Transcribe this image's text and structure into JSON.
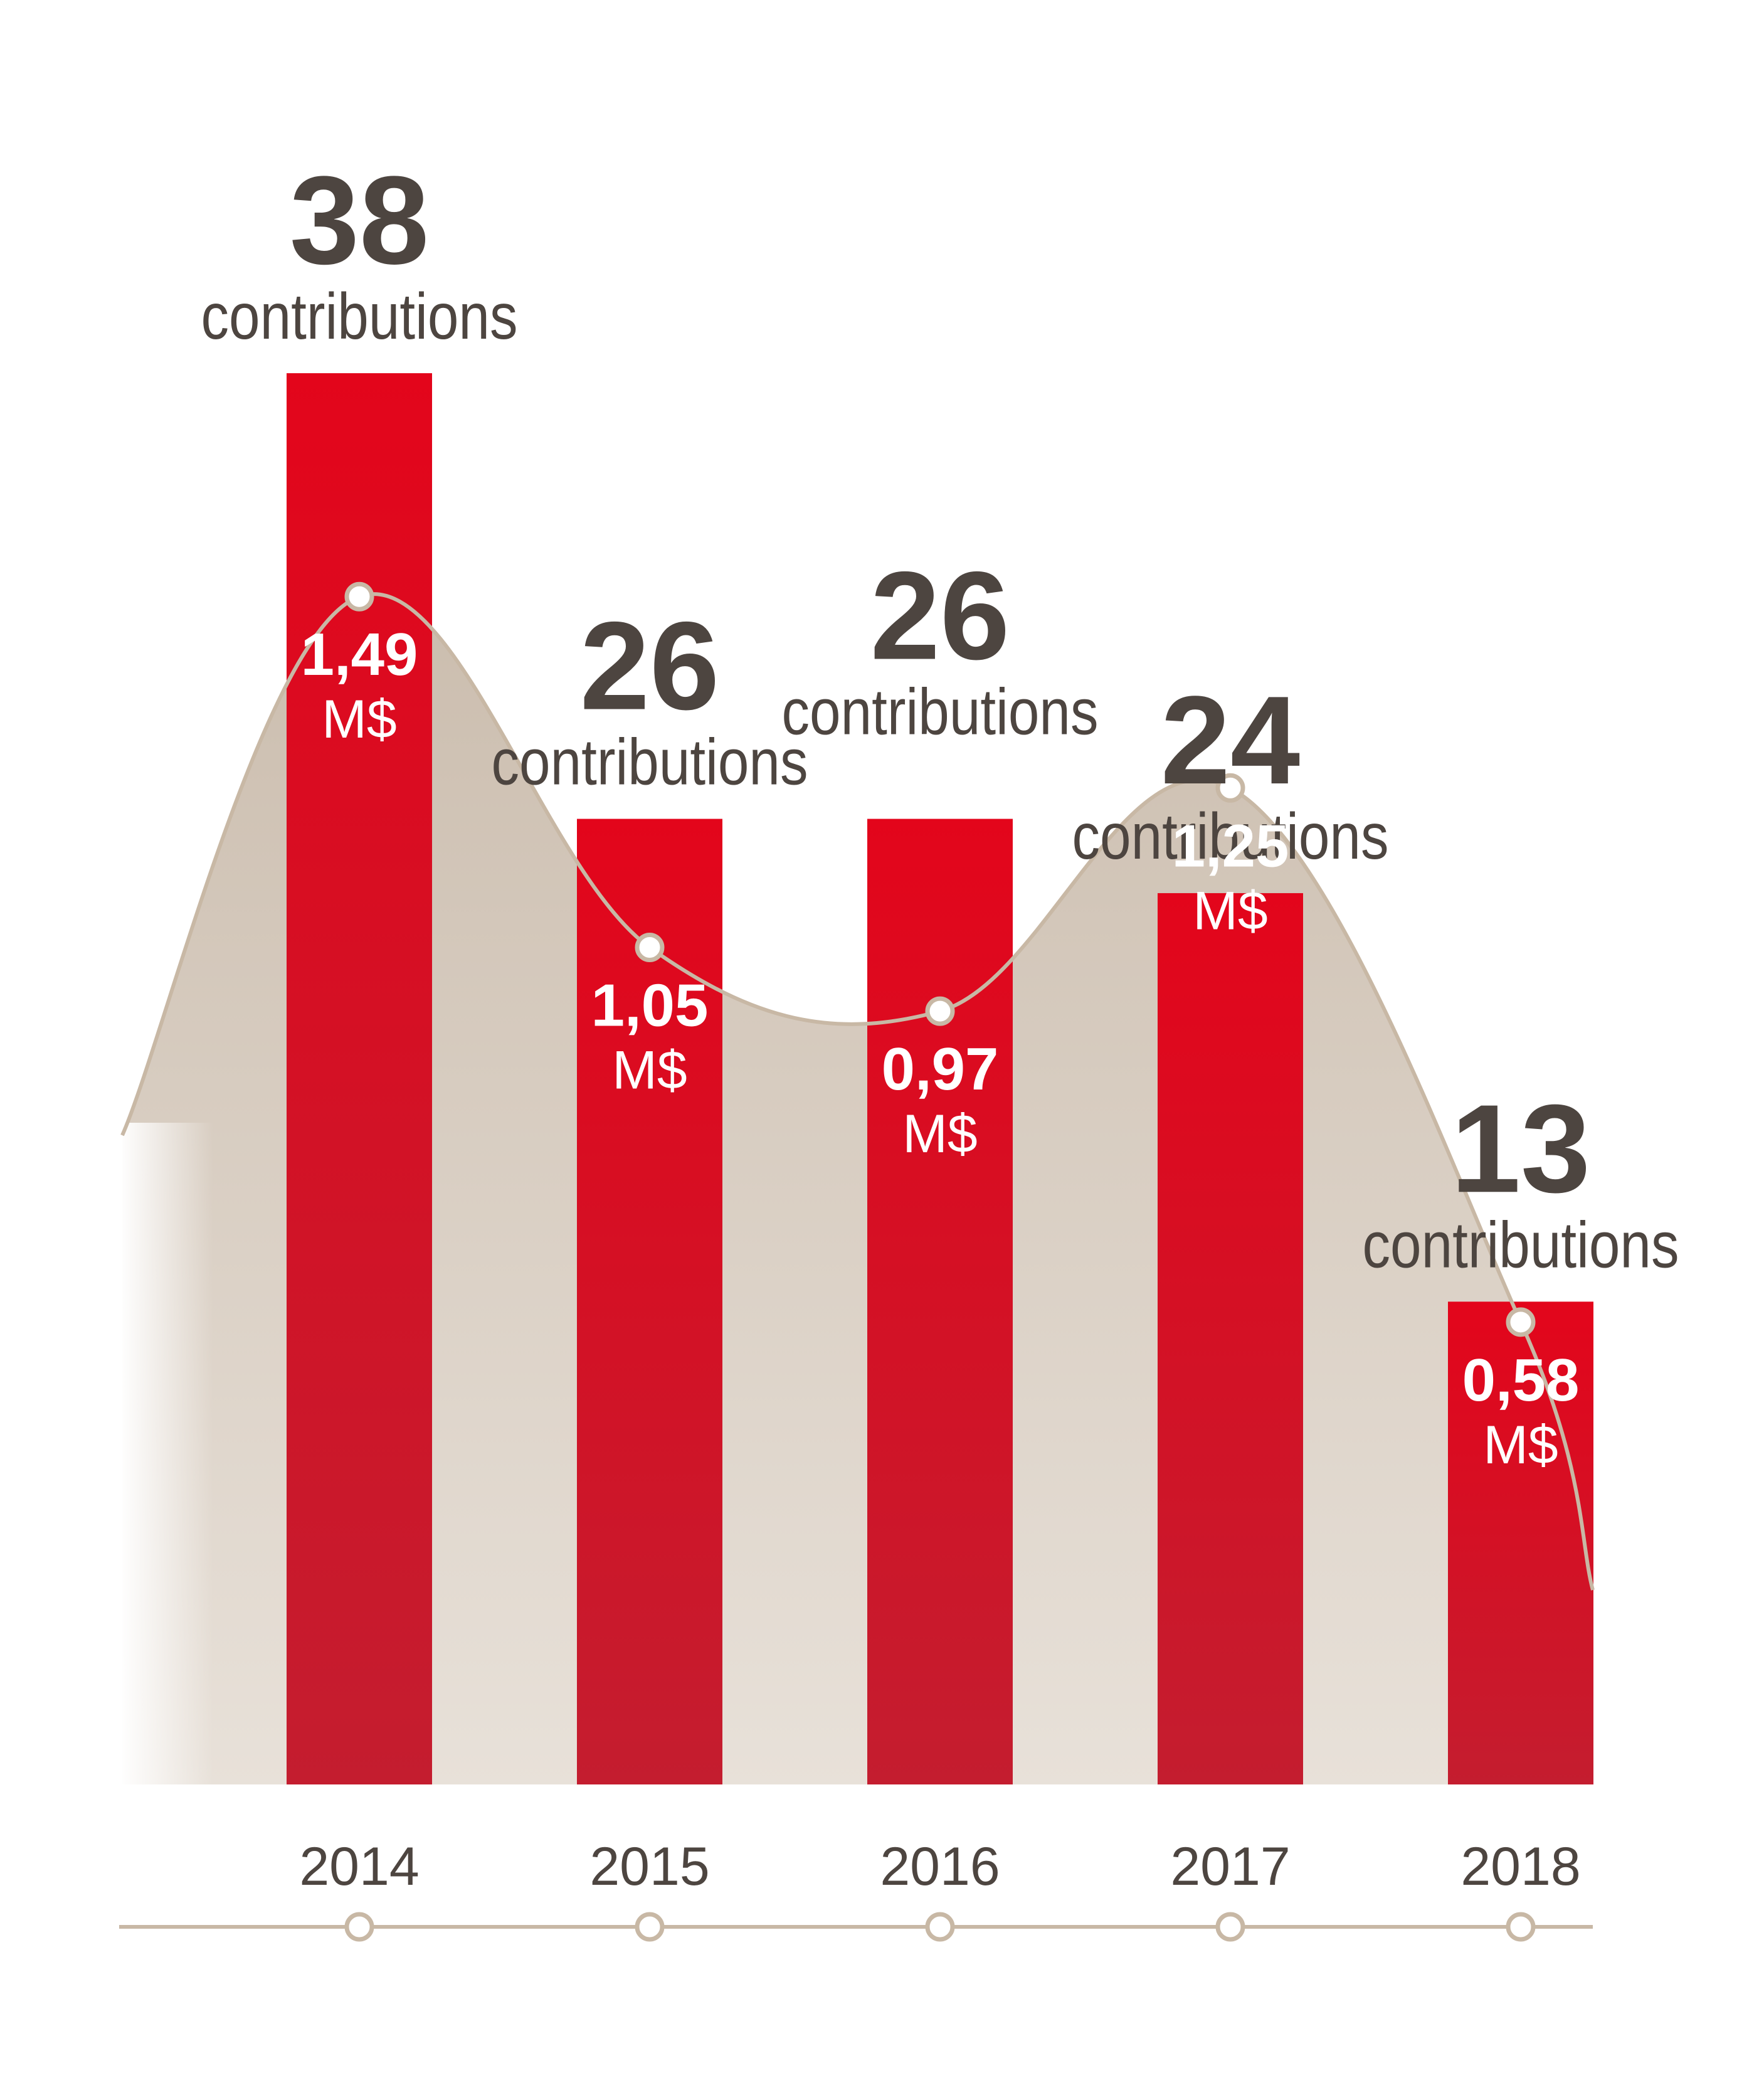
{
  "chart_data": {
    "type": "bar",
    "categories": [
      "2014",
      "2015",
      "2016",
      "2017",
      "2018"
    ],
    "series": [
      {
        "values": [
          38,
          26,
          26,
          24,
          13
        ],
        "label": "contributions",
        "color": "#e30613"
      },
      {
        "values": [
          1.49,
          1.05,
          0.97,
          1.25,
          0.58
        ],
        "labels": [
          "1,49",
          "1,05",
          "0,97",
          "1,25",
          "0,58"
        ],
        "unit": "M$",
        "color": "#cfc3b5"
      }
    ],
    "colors": {
      "bar_top": "#e3051b",
      "bar_bottom": "#c41d2f",
      "text_dark": "#4d4540",
      "area": "#cbbdae",
      "line": "#c8b8a5",
      "marker_fill": "#ffffff",
      "text_light": "#ffffff"
    }
  }
}
